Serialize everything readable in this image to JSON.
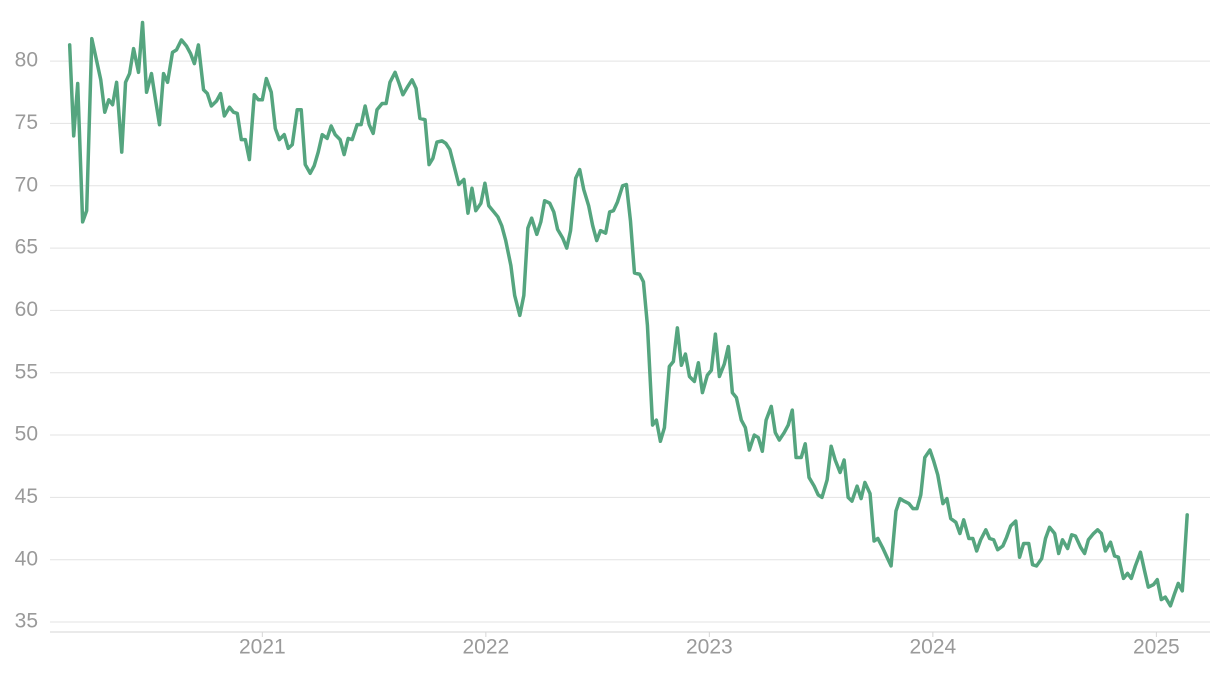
{
  "chart_data": {
    "type": "line",
    "x": [
      2020.138,
      2020.156,
      2020.174,
      2020.196,
      2020.214,
      2020.237,
      2020.259,
      2020.277,
      2020.295,
      2020.313,
      2020.33,
      2020.348,
      2020.371,
      2020.388,
      2020.406,
      2020.424,
      2020.446,
      2020.464,
      2020.482,
      2020.504,
      2020.522,
      2020.54,
      2020.558,
      2020.576,
      2020.598,
      2020.616,
      2020.638,
      2020.661,
      2020.679,
      2020.696,
      2020.714,
      2020.737,
      2020.754,
      2020.772,
      2020.795,
      2020.813,
      2020.83,
      2020.853,
      2020.871,
      2020.888,
      2020.906,
      2020.924,
      2020.942,
      2020.964,
      2020.982,
      2021.0,
      2021.018,
      2021.04,
      2021.058,
      2021.076,
      2021.098,
      2021.116,
      2021.134,
      2021.156,
      2021.174,
      2021.192,
      2021.214,
      2021.232,
      2021.25,
      2021.268,
      2021.29,
      2021.308,
      2021.326,
      2021.348,
      2021.366,
      2021.384,
      2021.402,
      2021.424,
      2021.442,
      2021.46,
      2021.478,
      2021.496,
      2021.513,
      2021.536,
      2021.554,
      2021.571,
      2021.594,
      2021.612,
      2021.629,
      2021.652,
      2021.67,
      2021.688,
      2021.705,
      2021.728,
      2021.746,
      2021.763,
      2021.781,
      2021.804,
      2021.821,
      2021.839,
      2021.862,
      2021.879,
      2021.902,
      2021.92,
      2021.938,
      2021.955,
      2021.978,
      2021.996,
      2022.013,
      2022.036,
      2022.054,
      2022.071,
      2022.089,
      2022.112,
      2022.129,
      2022.152,
      2022.17,
      2022.188,
      2022.205,
      2022.228,
      2022.246,
      2022.263,
      2022.286,
      2022.304,
      2022.321,
      2022.344,
      2022.362,
      2022.379,
      2022.402,
      2022.42,
      2022.438,
      2022.46,
      2022.478,
      2022.496,
      2022.513,
      2022.536,
      2022.554,
      2022.571,
      2022.589,
      2022.612,
      2022.629,
      2022.647,
      2022.665,
      2022.688,
      2022.705,
      2022.723,
      2022.746,
      2022.763,
      2022.781,
      2022.799,
      2022.821,
      2022.839,
      2022.857,
      2022.875,
      2022.893,
      2022.911,
      2022.933,
      2022.951,
      2022.969,
      2022.991,
      2023.009,
      2023.027,
      2023.045,
      2023.067,
      2023.085,
      2023.103,
      2023.121,
      2023.143,
      2023.161,
      2023.179,
      2023.201,
      2023.219,
      2023.237,
      2023.254,
      2023.277,
      2023.295,
      2023.313,
      2023.335,
      2023.353,
      2023.371,
      2023.388,
      2023.411,
      2023.429,
      2023.446,
      2023.469,
      2023.487,
      2023.504,
      2023.527,
      2023.545,
      2023.563,
      2023.585,
      2023.603,
      2023.621,
      2023.638,
      2023.661,
      2023.679,
      2023.696,
      2023.719,
      2023.737,
      2023.754,
      2023.777,
      2023.795,
      2023.813,
      2023.835,
      2023.853,
      2023.871,
      2023.893,
      2023.911,
      2023.929,
      2023.946,
      2023.964,
      2023.987,
      2024.004,
      2024.022,
      2024.045,
      2024.063,
      2024.08,
      2024.103,
      2024.121,
      2024.138,
      2024.161,
      2024.179,
      2024.196,
      2024.214,
      2024.237,
      2024.254,
      2024.272,
      2024.29,
      2024.313,
      2024.33,
      2024.348,
      2024.371,
      2024.388,
      2024.406,
      2024.429,
      2024.446,
      2024.464,
      2024.487,
      2024.504,
      2024.522,
      2024.545,
      2024.563,
      2024.58,
      2024.603,
      2024.621,
      2024.638,
      2024.661,
      2024.679,
      2024.696,
      2024.719,
      2024.737,
      2024.754,
      2024.772,
      2024.795,
      2024.813,
      2024.83,
      2024.853,
      2024.871,
      2024.888,
      2024.906,
      2024.929,
      2024.946,
      2024.964,
      2024.987,
      2025.004,
      2025.022,
      2025.04,
      2025.063,
      2025.08,
      2025.098,
      2025.116,
      2025.138
    ],
    "series": [
      {
        "color": "#55a57f",
        "values": [
          81.3,
          74.0,
          78.2,
          67.1,
          68.0,
          81.8,
          80.0,
          78.5,
          75.9,
          76.9,
          76.5,
          78.3,
          72.7,
          78.3,
          79.0,
          81.0,
          79.1,
          83.1,
          77.5,
          79.0,
          76.9,
          74.9,
          79.0,
          78.3,
          80.7,
          80.9,
          81.7,
          81.2,
          80.6,
          79.8,
          81.3,
          77.7,
          77.4,
          76.4,
          76.8,
          77.4,
          75.6,
          76.3,
          75.9,
          75.8,
          73.7,
          73.7,
          72.1,
          77.3,
          76.9,
          76.9,
          78.6,
          77.5,
          74.6,
          73.7,
          74.1,
          73.0,
          73.3,
          76.1,
          76.1,
          71.7,
          71.0,
          71.6,
          72.7,
          74.1,
          73.8,
          74.8,
          74.1,
          73.7,
          72.5,
          73.8,
          73.7,
          74.9,
          74.9,
          76.4,
          74.9,
          74.2,
          76.1,
          76.6,
          76.6,
          78.3,
          79.1,
          78.2,
          77.3,
          78.0,
          78.5,
          77.8,
          75.4,
          75.3,
          71.7,
          72.2,
          73.5,
          73.6,
          73.4,
          72.9,
          71.3,
          70.1,
          70.5,
          67.8,
          69.8,
          68.0,
          68.6,
          70.2,
          68.4,
          67.9,
          67.5,
          66.8,
          65.6,
          63.6,
          61.2,
          59.6,
          61.2,
          66.6,
          67.4,
          66.1,
          67.1,
          68.8,
          68.6,
          67.9,
          66.5,
          65.8,
          65.0,
          66.4,
          70.6,
          71.3,
          69.7,
          68.4,
          66.8,
          65.6,
          66.4,
          66.2,
          67.9,
          68.0,
          68.7,
          70.0,
          70.1,
          67.2,
          63.0,
          62.9,
          62.3,
          58.8,
          50.8,
          51.2,
          49.5,
          50.6,
          55.5,
          55.9,
          58.6,
          55.6,
          56.5,
          54.7,
          54.3,
          55.8,
          53.4,
          54.8,
          55.2,
          58.1,
          54.7,
          55.7,
          57.1,
          53.4,
          53.0,
          51.2,
          50.6,
          48.8,
          50.0,
          49.8,
          48.7,
          51.2,
          52.3,
          50.2,
          49.6,
          50.2,
          50.8,
          52.0,
          48.2,
          48.2,
          49.3,
          46.6,
          45.9,
          45.2,
          45.0,
          46.4,
          49.1,
          48.0,
          47.0,
          48.0,
          45.0,
          44.7,
          45.9,
          44.9,
          46.2,
          45.3,
          41.5,
          41.7,
          40.9,
          40.2,
          39.5,
          43.9,
          44.9,
          44.7,
          44.5,
          44.1,
          44.1,
          45.2,
          48.2,
          48.8,
          47.9,
          46.8,
          44.5,
          44.9,
          43.3,
          43.0,
          42.1,
          43.2,
          41.7,
          41.7,
          40.7,
          41.6,
          42.4,
          41.7,
          41.6,
          40.8,
          41.1,
          41.8,
          42.7,
          43.1,
          40.2,
          41.3,
          41.3,
          39.6,
          39.5,
          40.1,
          41.7,
          42.6,
          42.1,
          40.5,
          41.6,
          40.9,
          42.0,
          41.9,
          41.0,
          40.5,
          41.6,
          42.1,
          42.4,
          42.1,
          40.7,
          41.4,
          40.3,
          40.2,
          38.5,
          38.9,
          38.5,
          39.5,
          40.6,
          39.2,
          37.8,
          38.0,
          38.4,
          36.8,
          37.0,
          36.3,
          37.2,
          38.1,
          37.5,
          43.6
        ]
      }
    ],
    "xlim": [
      2020.05,
      2025.24
    ],
    "xticks": [
      2021,
      2022,
      2023,
      2024,
      2025
    ],
    "ylim": [
      34.2,
      84.1
    ],
    "yticks": [
      35,
      40,
      45,
      50,
      55,
      60,
      65,
      70,
      75,
      80
    ],
    "grid": true
  }
}
